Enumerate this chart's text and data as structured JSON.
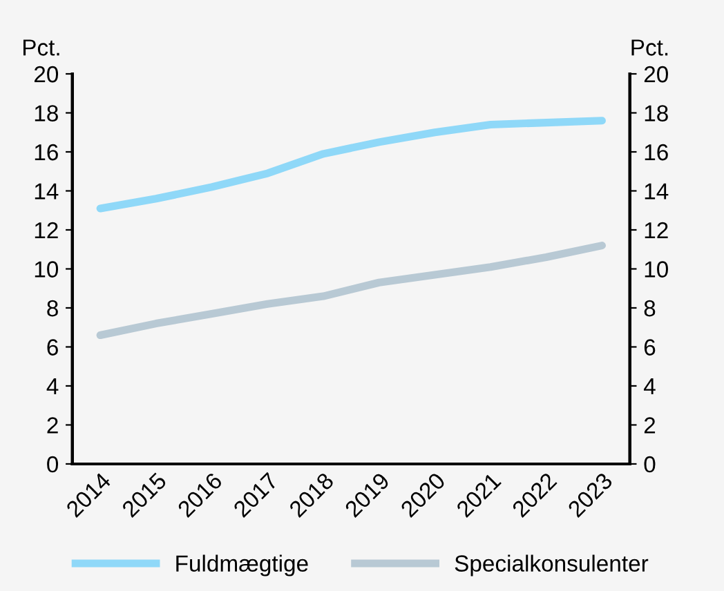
{
  "chart_data": {
    "type": "line",
    "ylabel": "Pct.",
    "y2label": "Pct.",
    "categories": [
      "2014",
      "2015",
      "2016",
      "2017",
      "2018",
      "2019",
      "2020",
      "2021",
      "2022",
      "2023"
    ],
    "series": [
      {
        "name": "Fuldmægtige",
        "color": "#8fd8f8",
        "values": [
          13.1,
          13.6,
          14.2,
          14.9,
          15.9,
          16.5,
          17.0,
          17.4,
          17.5,
          17.6
        ]
      },
      {
        "name": "Specialkonsulenter",
        "color": "#b8c9d4",
        "values": [
          6.6,
          7.2,
          7.7,
          8.2,
          8.6,
          9.3,
          9.7,
          10.1,
          10.6,
          11.2
        ]
      }
    ],
    "ylim": [
      0,
      20
    ],
    "yticks": [
      0,
      2,
      4,
      6,
      8,
      10,
      12,
      14,
      16,
      18,
      20
    ],
    "y2lim": [
      0,
      20
    ],
    "y2ticks": [
      0,
      2,
      4,
      6,
      8,
      10,
      12,
      14,
      16,
      18,
      20
    ],
    "grid": false,
    "legend": "bottom",
    "marker": "none",
    "line_style": "solid"
  }
}
